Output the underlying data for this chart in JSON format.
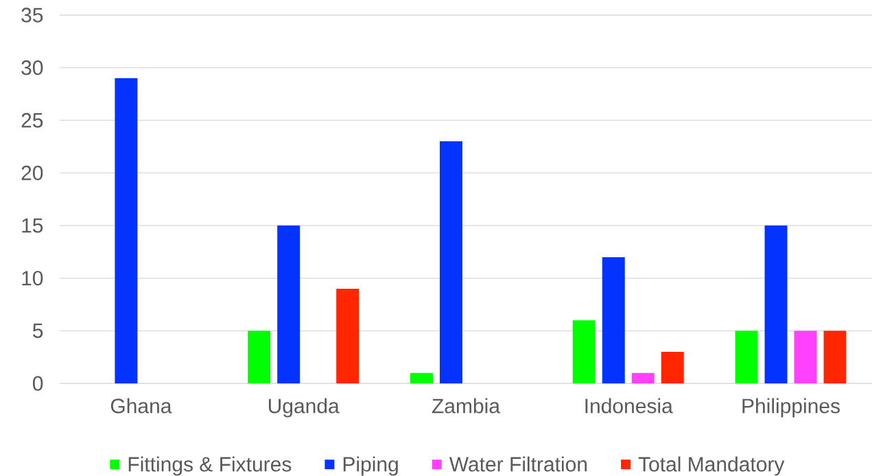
{
  "chart_data": {
    "type": "bar",
    "categories": [
      "Ghana",
      "Uganda",
      "Zambia",
      "Indonesia",
      "Philippines"
    ],
    "series": [
      {
        "name": "Fittings & Fixtures",
        "color": "#00ff00",
        "values": [
          0,
          5,
          1,
          6,
          5
        ]
      },
      {
        "name": "Piping",
        "color": "#0433ff",
        "values": [
          29,
          15,
          23,
          12,
          15
        ]
      },
      {
        "name": "Water Filtration",
        "color": "#ff40ff",
        "values": [
          0,
          0,
          0,
          1,
          5
        ]
      },
      {
        "name": "Total Mandatory",
        "color": "#ff2600",
        "values": [
          0,
          9,
          0,
          3,
          5
        ]
      }
    ],
    "ylim": [
      0,
      35
    ],
    "yticks": [
      0,
      5,
      10,
      15,
      20,
      25,
      30,
      35
    ],
    "grid": "y",
    "legend": "bottom"
  }
}
